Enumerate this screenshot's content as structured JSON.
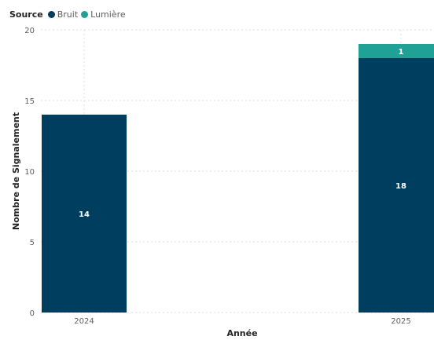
{
  "chart_data": {
    "type": "bar",
    "stacked": true,
    "categories": [
      "2024",
      "2025"
    ],
    "series": [
      {
        "name": "Bruit",
        "values": [
          14,
          18
        ],
        "color": "#003e5f"
      },
      {
        "name": "Lumière",
        "values": [
          0,
          1
        ],
        "color": "#20a195"
      }
    ],
    "legend_title": "Source",
    "legend_position": "top-left",
    "xlabel": "Année",
    "ylabel": "Nombre de Signalement",
    "ylim": [
      0,
      20
    ],
    "yticks": [
      0,
      5,
      10,
      15,
      20
    ],
    "grid": true,
    "data_labels": true
  }
}
